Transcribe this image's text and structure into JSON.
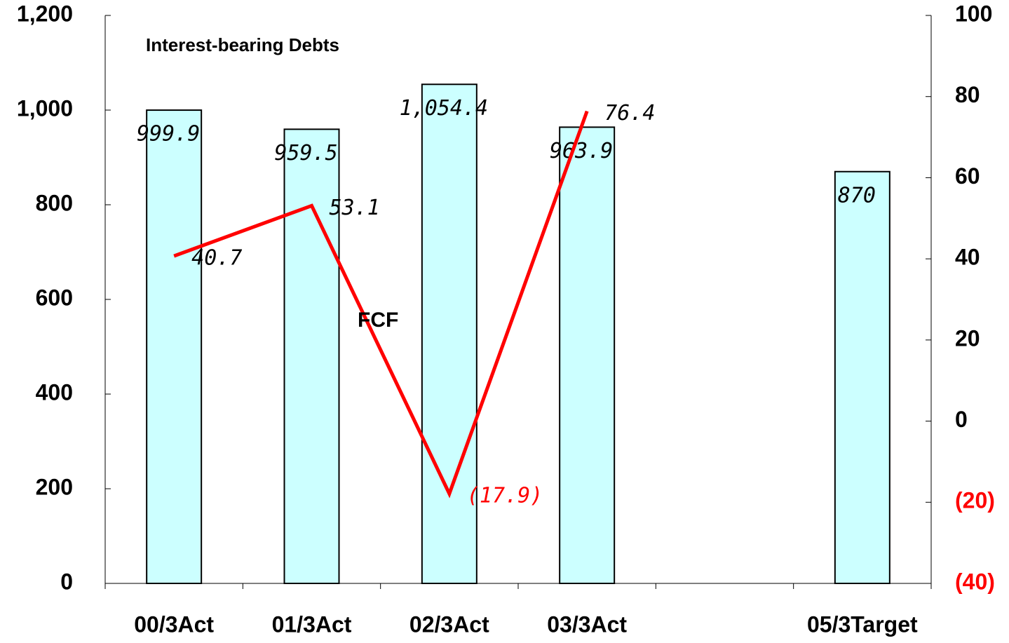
{
  "chart_data": {
    "type": "bar_line",
    "categories": [
      "00/3Act",
      "01/3Act",
      "02/3Act",
      "03/3Act",
      null,
      "05/3Target"
    ],
    "series": [
      {
        "type": "bar",
        "color": "#ccffff",
        "axis": "y",
        "values": [
          999.9,
          959.5,
          1054.4,
          963.9,
          null,
          870
        ],
        "value_labels": [
          "999.9",
          "959.5",
          "1,054.4",
          "963.9",
          null,
          "870"
        ]
      },
      {
        "type": "line",
        "color": "#ff0000",
        "axis": "y2",
        "values": [
          40.7,
          53.1,
          -17.9,
          76.4,
          null,
          null
        ],
        "value_labels": [
          "40.7",
          "53.1",
          "(17.9)",
          "76.4",
          null,
          null
        ]
      }
    ],
    "ylim": [
      0,
      1200
    ],
    "yticks": [
      0,
      200,
      400,
      600,
      800,
      {
        "value": 1000,
        "label": "1,000"
      },
      {
        "value": 1200,
        "label": "1,200"
      }
    ],
    "y2lim": [
      -40,
      100
    ],
    "y2ticks": [
      {
        "value": -40,
        "label": "(40)"
      },
      {
        "value": -20,
        "label": "(20)"
      },
      0,
      20,
      40,
      60,
      80,
      100
    ],
    "annotations": [
      "Interest-bearing Debts",
      "FCF"
    ]
  }
}
